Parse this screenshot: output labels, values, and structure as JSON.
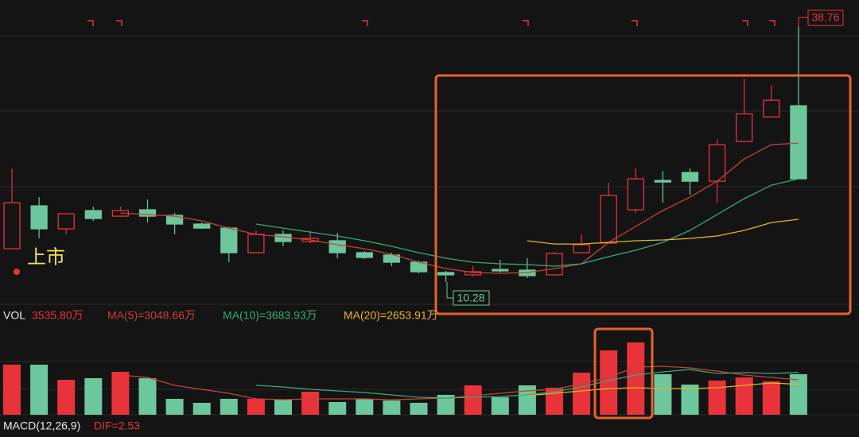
{
  "chart_data": [
    {
      "type": "candlestick",
      "open": [
        13.99,
        18.77,
        16.21,
        18.24,
        17.62,
        18.33,
        17.71,
        16.74,
        16.29,
        13.55,
        15.59,
        14.79,
        14.88,
        13.55,
        13.29,
        12.49,
        11.34,
        11.08,
        11.69,
        11.61,
        11.08,
        13.55,
        14.61,
        18.33,
        21.6,
        22.49,
        21.51,
        25.94,
        28.68,
        29.92
      ],
      "high": [
        22.93,
        19.74,
        17.89,
        18.68,
        18.68,
        19.48,
        17.97,
        16.91,
        16.47,
        16.03,
        16.03,
        16.03,
        15.76,
        13.73,
        13.55,
        12.67,
        11.52,
        12.05,
        12.76,
        12.93,
        13.64,
        15.59,
        21.34,
        22.93,
        22.66,
        22.93,
        26.2,
        32.92,
        32.21,
        38.76
      ],
      "low": [
        13.99,
        15.14,
        15.59,
        17.09,
        17.53,
        16.91,
        15.59,
        16.21,
        12.49,
        13.55,
        14.26,
        14.61,
        12.93,
        12.84,
        12.05,
        11.25,
        10.28,
        10.9,
        11.34,
        10.72,
        11.08,
        13.55,
        14.61,
        17.97,
        19.12,
        20.01,
        19.12,
        25.94,
        28.68,
        21.78
      ],
      "close": [
        19.12,
        16.21,
        17.89,
        17.36,
        18.24,
        17.62,
        16.74,
        16.29,
        13.55,
        15.59,
        14.79,
        15.14,
        13.55,
        13.02,
        12.49,
        11.43,
        11.08,
        11.43,
        11.52,
        10.99,
        13.46,
        14.44,
        19.92,
        21.78,
        21.42,
        21.51,
        25.58,
        29.03,
        30.53,
        21.78
      ],
      "up_color": "#e8333a",
      "down_color": "#6dc79c",
      "ylim": [
        7.8,
        41.7
      ],
      "series": [
        {
          "color": "#c8413a",
          "values": [
            null,
            null,
            null,
            null,
            17.97,
            17.8,
            17.62,
            17.09,
            16.29,
            15.59,
            15.32,
            14.97,
            14.44,
            14.0,
            13.38,
            12.49,
            11.78,
            11.34,
            11.25,
            11.34,
            11.78,
            12.31,
            14.7,
            16.47,
            18.24,
            19.74,
            21.51,
            23.99,
            25.58,
            25.76
          ]
        },
        {
          "color": "#3aa878",
          "values": [
            null,
            null,
            null,
            null,
            null,
            null,
            null,
            null,
            null,
            16.74,
            16.29,
            15.85,
            15.41,
            14.88,
            14.26,
            13.55,
            12.93,
            12.49,
            12.31,
            12.23,
            12.05,
            12.31,
            13.11,
            13.82,
            14.7,
            16.03,
            17.8,
            19.57,
            21.07,
            21.78
          ]
        },
        {
          "color": "#e6b422",
          "values": [
            null,
            null,
            null,
            null,
            null,
            null,
            null,
            null,
            null,
            null,
            null,
            null,
            null,
            null,
            null,
            null,
            null,
            null,
            null,
            14.88,
            14.52,
            14.52,
            14.7,
            14.88,
            14.97,
            15.14,
            15.41,
            16.03,
            16.91,
            17.27
          ]
        }
      ],
      "annotations": {
        "high_label": "38.76",
        "low_label": "10.28",
        "listing_label": "上市"
      }
    },
    {
      "type": "bar",
      "title": "VOL",
      "current_label": "3535.80万",
      "values": [
        4367,
        4367,
        3050,
        3188,
        3742,
        3188,
        1386,
        1040,
        1386,
        1386,
        1317,
        2010,
        1109,
        1386,
        1247,
        1040,
        1733,
        2564,
        1525,
        2564,
        2356,
        3673,
        5613,
        6306,
        3535,
        2633,
        2980,
        3257,
        2911,
        3535.8
      ],
      "ylim": [
        0,
        8450
      ],
      "series": [
        {
          "name": "MA(5)=3048.66万",
          "color": "#c8413a",
          "values": [
            null,
            null,
            null,
            null,
            3465,
            3257,
            2564,
            2218,
            1871,
            1386,
            1317,
            1386,
            1386,
            1386,
            1317,
            1386,
            1455,
            1663,
            1871,
            2079,
            2218,
            2703,
            3257,
            4158,
            4227,
            4089,
            3812,
            3465,
            3257,
            3048.66
          ]
        },
        {
          "name": "MA(10)=3683.93万",
          "color": "#3aa878",
          "values": [
            null,
            null,
            null,
            null,
            null,
            null,
            null,
            null,
            null,
            2564,
            2426,
            2218,
            2079,
            1940,
            1733,
            1525,
            1455,
            1525,
            1594,
            1733,
            2010,
            2426,
            2980,
            3465,
            3742,
            3950,
            3604,
            3673,
            3604,
            3683.93
          ]
        },
        {
          "name": "MA(20)=2653.91万",
          "color": "#e6b422",
          "values": [
            null,
            null,
            null,
            null,
            null,
            null,
            null,
            null,
            null,
            null,
            null,
            null,
            null,
            null,
            null,
            null,
            null,
            null,
            null,
            1663,
            1871,
            2079,
            2287,
            2356,
            2287,
            2287,
            2356,
            2564,
            2772,
            2653.91
          ]
        }
      ]
    },
    {
      "type": "macd",
      "title": "MACD(12,26,9)",
      "dif_label": "DIF=2.53"
    }
  ]
}
